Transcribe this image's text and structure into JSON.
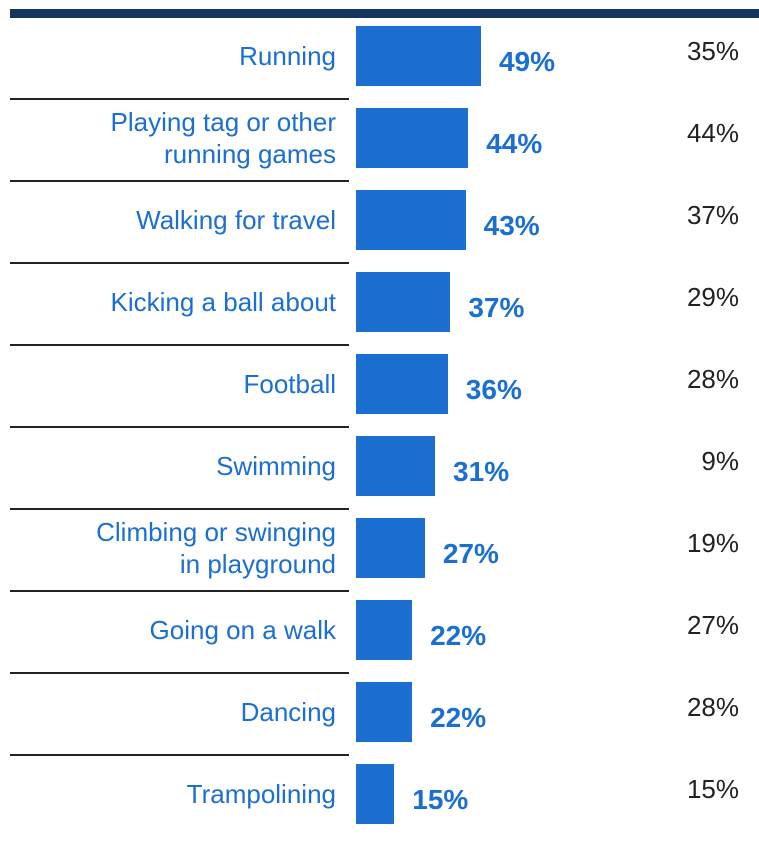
{
  "colors": {
    "bar": "#1a6fd1",
    "rule": "#13365a",
    "divider": "#222222"
  },
  "chart_data": {
    "type": "bar",
    "orientation": "horizontal",
    "categories": [
      "Running",
      "Playing tag or other running games",
      "Walking for travel",
      "Kicking a ball about",
      "Football",
      "Swimming",
      "Climbing or swinging in playground",
      "Going on a walk",
      "Dancing",
      "Trampolining"
    ],
    "category_lines": [
      [
        "Running"
      ],
      [
        "Playing tag or other",
        "running games"
      ],
      [
        "Walking for travel"
      ],
      [
        "Kicking a ball about"
      ],
      [
        "Football"
      ],
      [
        "Swimming"
      ],
      [
        "Climbing or swinging",
        "in playground"
      ],
      [
        "Going on a walk"
      ],
      [
        "Dancing"
      ],
      [
        "Trampolining"
      ]
    ],
    "series": [
      {
        "values": [
          49,
          44,
          43,
          37,
          36,
          31,
          27,
          22,
          22,
          15
        ],
        "labels": [
          "49%",
          "44%",
          "43%",
          "37%",
          "36%",
          "31%",
          "27%",
          "22%",
          "22%",
          "15%"
        ]
      },
      {
        "values": [
          35,
          44,
          37,
          29,
          28,
          9,
          19,
          27,
          28,
          15
        ],
        "labels": [
          "35%",
          "44%",
          "37%",
          "29%",
          "28%",
          "9%",
          "19%",
          "27%",
          "28%",
          "15%"
        ]
      }
    ],
    "xlim": [
      0,
      100
    ],
    "unit": "%"
  }
}
